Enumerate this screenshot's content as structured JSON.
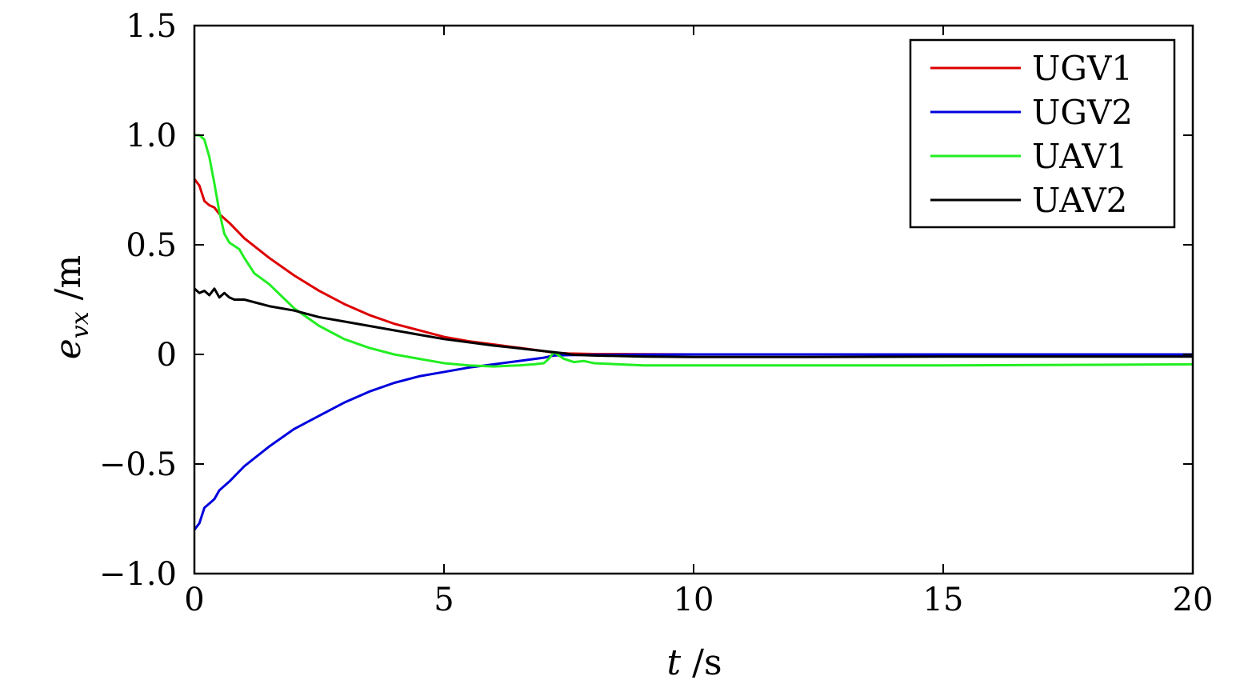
{
  "chart_data": {
    "type": "line",
    "xlabel": "t /s",
    "ylabel": "e_vx /m",
    "xlim": [
      0,
      20
    ],
    "ylim": [
      -1.0,
      1.5
    ],
    "xticks": [
      0,
      5,
      10,
      15,
      20
    ],
    "xtick_labels": [
      "0",
      "5",
      "10",
      "15",
      "20"
    ],
    "yticks": [
      -1.0,
      -0.5,
      0,
      0.5,
      1.0,
      1.5
    ],
    "ytick_labels": [
      "−1.0",
      "−0.5",
      "0",
      "0.5",
      "1.0",
      "1.5"
    ],
    "grid": false,
    "legend_position": "top-right",
    "series": [
      {
        "name": "UGV1",
        "color": "#dd0000",
        "x": [
          0,
          0.1,
          0.2,
          0.3,
          0.4,
          0.5,
          0.7,
          1.0,
          1.5,
          2.0,
          2.5,
          3.0,
          3.5,
          4.0,
          4.5,
          5.0,
          5.5,
          6.0,
          6.5,
          7.0,
          7.2,
          7.5,
          8.0,
          9.0,
          10,
          12,
          15,
          20
        ],
        "y": [
          0.8,
          0.77,
          0.7,
          0.68,
          0.67,
          0.64,
          0.6,
          0.53,
          0.44,
          0.36,
          0.29,
          0.23,
          0.18,
          0.14,
          0.11,
          0.08,
          0.06,
          0.045,
          0.03,
          0.015,
          0.008,
          0.004,
          0.002,
          0.001,
          0,
          0,
          0,
          0
        ]
      },
      {
        "name": "UGV2",
        "color": "#0000dd",
        "x": [
          0,
          0.1,
          0.2,
          0.3,
          0.4,
          0.5,
          0.7,
          1.0,
          1.5,
          2.0,
          2.5,
          3.0,
          3.5,
          4.0,
          4.5,
          5.0,
          5.5,
          6.0,
          6.5,
          7.0,
          7.2,
          7.5,
          8.0,
          9.0,
          10,
          12,
          15,
          20
        ],
        "y": [
          -0.8,
          -0.77,
          -0.7,
          -0.68,
          -0.66,
          -0.62,
          -0.58,
          -0.51,
          -0.42,
          -0.34,
          -0.28,
          -0.22,
          -0.17,
          -0.13,
          -0.1,
          -0.08,
          -0.06,
          -0.045,
          -0.03,
          -0.015,
          -0.005,
          -0.003,
          -0.002,
          -0.001,
          0,
          0,
          0,
          0
        ]
      },
      {
        "name": "UAV1",
        "color": "#22ee22",
        "x": [
          0,
          0.1,
          0.2,
          0.3,
          0.4,
          0.5,
          0.6,
          0.7,
          0.9,
          1.0,
          1.2,
          1.5,
          2.0,
          2.5,
          3.0,
          3.5,
          4.0,
          4.5,
          5.0,
          5.5,
          6.0,
          6.5,
          6.8,
          7.0,
          7.1,
          7.2,
          7.4,
          7.6,
          7.8,
          8.0,
          8.5,
          9.0,
          10,
          12,
          15,
          17.5,
          20
        ],
        "y": [
          1.0,
          1.0,
          0.98,
          0.9,
          0.78,
          0.65,
          0.55,
          0.51,
          0.48,
          0.44,
          0.37,
          0.32,
          0.21,
          0.13,
          0.07,
          0.03,
          0.0,
          -0.02,
          -0.04,
          -0.05,
          -0.055,
          -0.05,
          -0.045,
          -0.04,
          -0.02,
          0.01,
          -0.02,
          -0.035,
          -0.03,
          -0.04,
          -0.045,
          -0.05,
          -0.05,
          -0.05,
          -0.05,
          -0.048,
          -0.045
        ]
      },
      {
        "name": "UAV2",
        "color": "#000000",
        "x": [
          0,
          0.1,
          0.2,
          0.3,
          0.4,
          0.5,
          0.6,
          0.7,
          0.8,
          1.0,
          1.5,
          2.0,
          2.5,
          3.0,
          3.5,
          4.0,
          4.5,
          5.0,
          5.5,
          6.0,
          6.5,
          7.0,
          7.2,
          7.4,
          7.6,
          8.0,
          9.0,
          10,
          12,
          15,
          20
        ],
        "y": [
          0.3,
          0.28,
          0.29,
          0.27,
          0.3,
          0.26,
          0.28,
          0.26,
          0.25,
          0.25,
          0.22,
          0.2,
          0.17,
          0.15,
          0.13,
          0.11,
          0.09,
          0.07,
          0.055,
          0.04,
          0.028,
          0.015,
          0.01,
          0.005,
          -0.002,
          -0.005,
          -0.01,
          -0.012,
          -0.012,
          -0.01,
          -0.01
        ]
      }
    ]
  }
}
